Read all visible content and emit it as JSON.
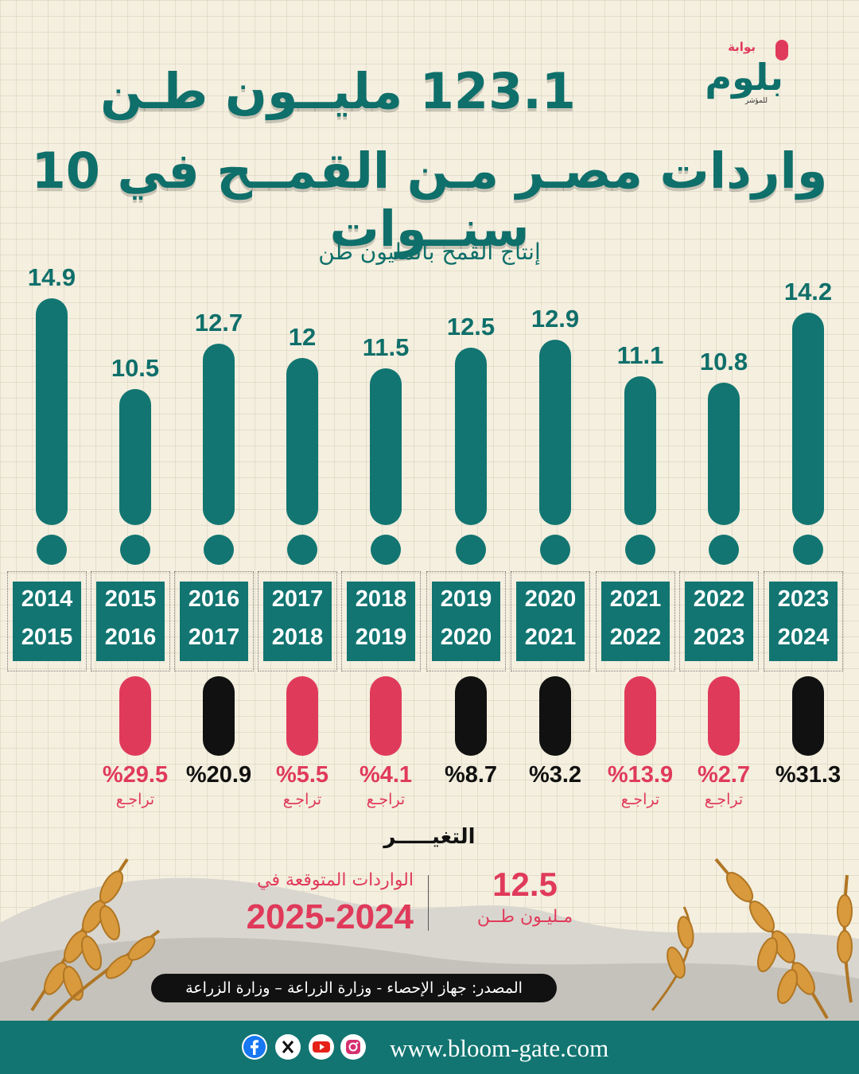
{
  "header": {
    "title_line1": "123.1 مليــون طـن",
    "title_line2": "واردات مصـر مـن القمــح في 10 سنــوات",
    "subtitle": "إنتاج القمح بالمليون طن"
  },
  "logo": {
    "top_text": "بوابة",
    "main_text": "بلوم",
    "sub_text": "للمؤشر"
  },
  "chart_data": {
    "type": "bar",
    "title": "إنتاج القمح بالمليون طن",
    "categories": [
      {
        "from": "2014",
        "to": "2015"
      },
      {
        "from": "2015",
        "to": "2016"
      },
      {
        "from": "2016",
        "to": "2017"
      },
      {
        "from": "2017",
        "to": "2018"
      },
      {
        "from": "2018",
        "to": "2019"
      },
      {
        "from": "2019",
        "to": "2020"
      },
      {
        "from": "2020",
        "to": "2021"
      },
      {
        "from": "2021",
        "to": "2022"
      },
      {
        "from": "2022",
        "to": "2023"
      },
      {
        "from": "2023",
        "to": "2024"
      }
    ],
    "values": [
      14.9,
      10.5,
      12.7,
      12,
      11.5,
      12.5,
      12.9,
      11.1,
      10.8,
      14.2
    ],
    "value_labels": [
      "14.9",
      "10.5",
      "12.7",
      "12",
      "11.5",
      "12.5",
      "12.9",
      "11.1",
      "10.8",
      "14.2"
    ],
    "changes": [
      null,
      {
        "text": "%29.5",
        "direction": "تراجـع",
        "decline": true
      },
      {
        "text": "%20.9",
        "direction": "",
        "decline": false
      },
      {
        "text": "%5.5",
        "direction": "تراجـع",
        "decline": true
      },
      {
        "text": "%4.1",
        "direction": "تراجـع",
        "decline": true
      },
      {
        "text": "%8.7",
        "direction": "",
        "decline": false
      },
      {
        "text": "%3.2",
        "direction": "",
        "decline": false
      },
      {
        "text": "%13.9",
        "direction": "تراجـع",
        "decline": true
      },
      {
        "text": "%2.7",
        "direction": "تراجـع",
        "decline": true
      },
      {
        "text": "%31.3",
        "direction": "",
        "decline": false
      }
    ],
    "change_label": "التغيـــــر"
  },
  "expected": {
    "label": "الواردات المتوقعة في",
    "years": "2025-2024",
    "value": "12.5",
    "unit": "مـليـون طــن"
  },
  "source": "المصدر: جهاز الإحصاء - وزارة الزراعة – وزارة الزراعة",
  "footer": {
    "url": "www.bloom-gate.com",
    "icons": [
      "instagram-icon",
      "youtube-icon",
      "x-icon",
      "facebook-icon"
    ]
  },
  "colors": {
    "teal": "#127571",
    "pink": "#e03a5a",
    "black": "#111111",
    "background": "#f4efdf"
  }
}
